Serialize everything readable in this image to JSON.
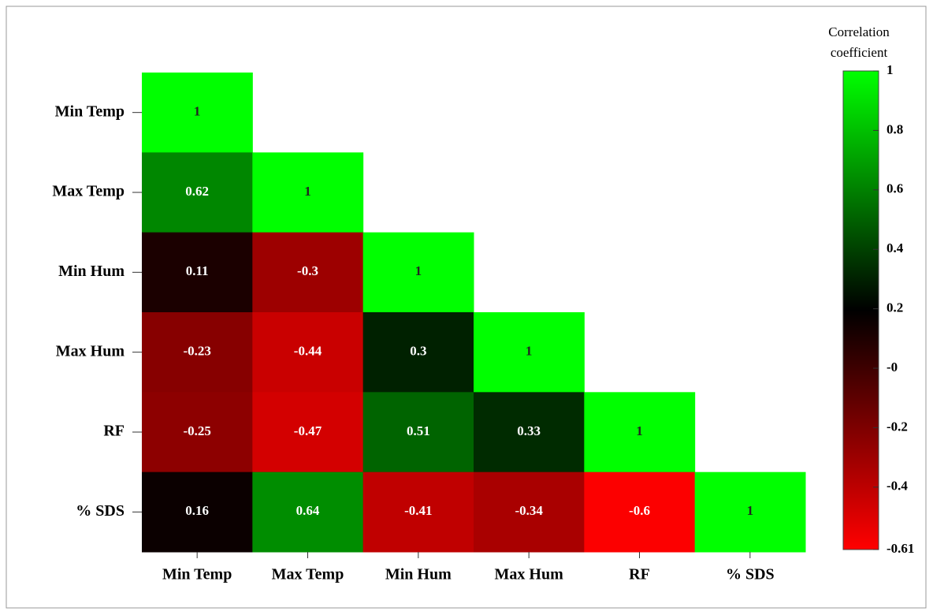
{
  "chart_data": {
    "type": "heatmap",
    "rows": [
      "Min Temp",
      "Max Temp",
      "Min Hum",
      "Max Hum",
      "RF",
      "% SDS"
    ],
    "columns": [
      "Min Temp",
      "Max Temp",
      "Min Hum",
      "Max Hum",
      "RF",
      "% SDS"
    ],
    "values": [
      [
        1,
        null,
        null,
        null,
        null,
        null
      ],
      [
        0.62,
        1,
        null,
        null,
        null,
        null
      ],
      [
        0.11,
        -0.3,
        1,
        null,
        null,
        null
      ],
      [
        -0.23,
        -0.44,
        0.3,
        1,
        null,
        null
      ],
      [
        -0.25,
        -0.47,
        0.51,
        0.33,
        1,
        null
      ],
      [
        0.16,
        0.64,
        -0.41,
        -0.34,
        -0.6,
        1
      ]
    ],
    "colorbar_title": [
      "Correlation",
      "coefficient"
    ],
    "clim": [
      -0.61,
      1
    ],
    "colors": [
      "#ff0000",
      "#000000",
      "#00ff00"
    ],
    "cticks": [
      1,
      0.8,
      0.6,
      0.4,
      0.2,
      {
        "value": 0,
        "label": "-0"
      },
      -0.2,
      -0.4,
      -0.61
    ]
  }
}
